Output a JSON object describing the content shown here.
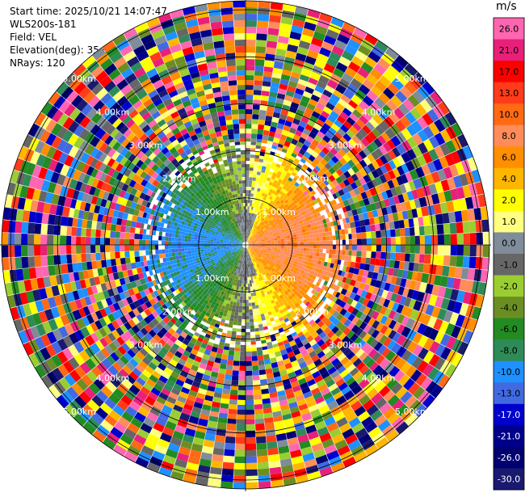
{
  "info": {
    "start_time": "Start time: 2025/10/21 14:07:47",
    "site": "WLS200s-181",
    "field": "Field: VEL",
    "elevation": "Elevation(deg): 35.00",
    "nrays": "NRays: 120"
  },
  "chart_data": {
    "type": "heatmap",
    "projection": "polar-ppi",
    "field": "VEL",
    "elevation_deg": 35.0,
    "n_rays": 120,
    "range_rings_km": [
      1.0,
      2.0,
      3.0,
      4.0,
      5.0
    ],
    "range_labels": [
      "1.00km",
      "2.00km",
      "3.00km",
      "4.00km",
      "5.00km"
    ],
    "colorbar": {
      "unit": "m/s",
      "ticks": [
        "26.0",
        "21.0",
        "17.0",
        "13.0",
        "10.0",
        "8.0",
        "6.0",
        "4.0",
        "2.0",
        "1.0",
        "0.0",
        "-1.0",
        "-2.0",
        "-4.0",
        "-6.0",
        "-8.0",
        "-10.0",
        "-13.0",
        "-17.0",
        "-21.0",
        "-26.0",
        "-30.0"
      ],
      "colors": [
        "#ff66b2",
        "#e8207a",
        "#ff0000",
        "#ff3b1a",
        "#ff6a13",
        "#ff8c5a",
        "#ff8e00",
        "#ffb600",
        "#ffff00",
        "#ffff80",
        "#7f8c99",
        "#666666",
        "#9acd32",
        "#6b8e23",
        "#228b22",
        "#2e8b57",
        "#1e90ff",
        "#4169e1",
        "#0000cd",
        "#00008b",
        "#000070",
        "#191970"
      ]
    },
    "pattern": {
      "near_field_velocity": "toward-negative (green/blue) in the west, positive (yellow/orange) in the east",
      "far_field": "noise"
    }
  }
}
